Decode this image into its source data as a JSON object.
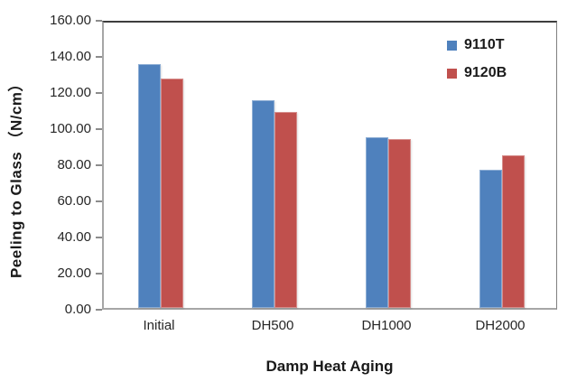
{
  "chart_data": {
    "type": "bar",
    "title": "",
    "xlabel": "Damp Heat Aging",
    "ylabel": "Peeling to Glass （N/cm）",
    "categories": [
      "Initial",
      "DH500",
      "DH1000",
      "DH2000"
    ],
    "series": [
      {
        "name": "9110T",
        "color": "#4f81bd",
        "values": [
          136.5,
          116.5,
          95.5,
          77.5
        ]
      },
      {
        "name": "9120B",
        "color": "#c0504d",
        "values": [
          128.5,
          110.0,
          94.5,
          85.5
        ]
      }
    ],
    "ylim": [
      0,
      160
    ],
    "ytick_step": 20,
    "ytick_decimals": 2,
    "grid": false,
    "legend_position": "top-right-inside",
    "legend_entries": [
      "9110T",
      "9120B"
    ]
  }
}
